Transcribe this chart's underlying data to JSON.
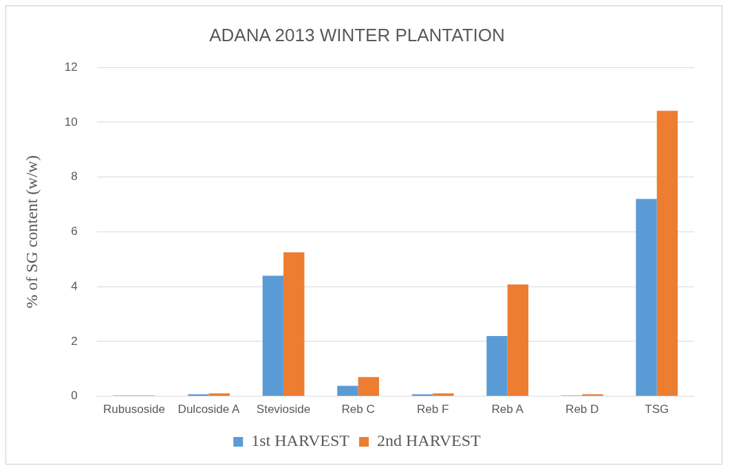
{
  "chart_data": {
    "type": "bar",
    "title": "ADANA 2013 WINTER PLANTATION",
    "ylabel": "% of SG content (w/w)",
    "categories": [
      "Rubusoside",
      "Dulcoside A",
      "Stevioside",
      "Reb C",
      "Reb F",
      "Reb A",
      "Reb D",
      "TSG"
    ],
    "series": [
      {
        "name": "1st HARVEST",
        "color": "#5b9bd5",
        "values": [
          0.03,
          0.07,
          4.4,
          0.38,
          0.07,
          2.2,
          0.03,
          7.2
        ]
      },
      {
        "name": "2nd HARVEST",
        "color": "#ed7d31",
        "values": [
          0.03,
          0.1,
          5.25,
          0.7,
          0.1,
          4.08,
          0.07,
          10.42
        ]
      }
    ],
    "ylim": [
      0,
      12
    ],
    "yticks": [
      0,
      2,
      4,
      6,
      8,
      10,
      12
    ],
    "grid": "y",
    "legend": "bottom"
  }
}
